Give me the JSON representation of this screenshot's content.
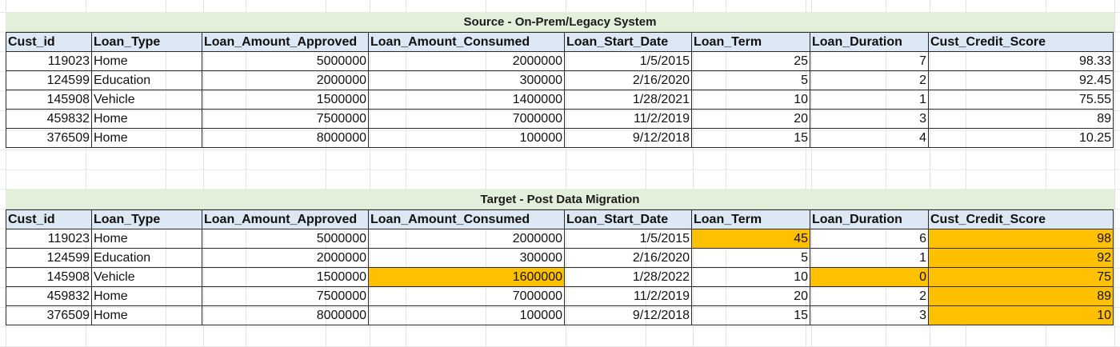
{
  "columns": [
    "Cust_id",
    "Loan_Type",
    "Loan_Amount_Approved",
    "Loan_Amount_Consumed",
    "Loan_Start_Date",
    "Loan_Term",
    "Loan_Duration",
    "Cust_Credit_Score"
  ],
  "source": {
    "title": "Source - On-Prem/Legacy System",
    "rows": [
      [
        "119023",
        "Home",
        "5000000",
        "2000000",
        "1/5/2015",
        "25",
        "7",
        "98.33"
      ],
      [
        "124599",
        "Education",
        "2000000",
        "300000",
        "2/16/2020",
        "5",
        "2",
        "92.45"
      ],
      [
        "145908",
        "Vehicle",
        "1500000",
        "1400000",
        "1/28/2021",
        "10",
        "1",
        "75.55"
      ],
      [
        "459832",
        "Home",
        "7500000",
        "7000000",
        "11/2/2019",
        "20",
        "3",
        "89"
      ],
      [
        "376509",
        "Home",
        "8000000",
        "100000",
        "9/12/2018",
        "15",
        "4",
        "10.25"
      ]
    ]
  },
  "target": {
    "title": "Target - Post Data Migration",
    "rows": [
      [
        "119023",
        "Home",
        "5000000",
        "2000000",
        "1/5/2015",
        "45",
        "6",
        "98"
      ],
      [
        "124599",
        "Education",
        "2000000",
        "300000",
        "2/16/2020",
        "5",
        "1",
        "92"
      ],
      [
        "145908",
        "Vehicle",
        "1500000",
        "1600000",
        "1/28/2022",
        "10",
        "0",
        "75"
      ],
      [
        "459832",
        "Home",
        "7500000",
        "7000000",
        "11/2/2019",
        "20",
        "2",
        "89"
      ],
      [
        "376509",
        "Home",
        "8000000",
        "100000",
        "9/12/2018",
        "15",
        "3",
        "10"
      ]
    ],
    "highlighted": [
      [
        0,
        5
      ],
      [
        0,
        7
      ],
      [
        1,
        7
      ],
      [
        2,
        3
      ],
      [
        2,
        6
      ],
      [
        2,
        7
      ],
      [
        3,
        7
      ],
      [
        4,
        7
      ]
    ]
  },
  "colors": {
    "highlight": "#ffc000",
    "header_fill": "#dde8f5",
    "title_fill": "#e2efda"
  }
}
